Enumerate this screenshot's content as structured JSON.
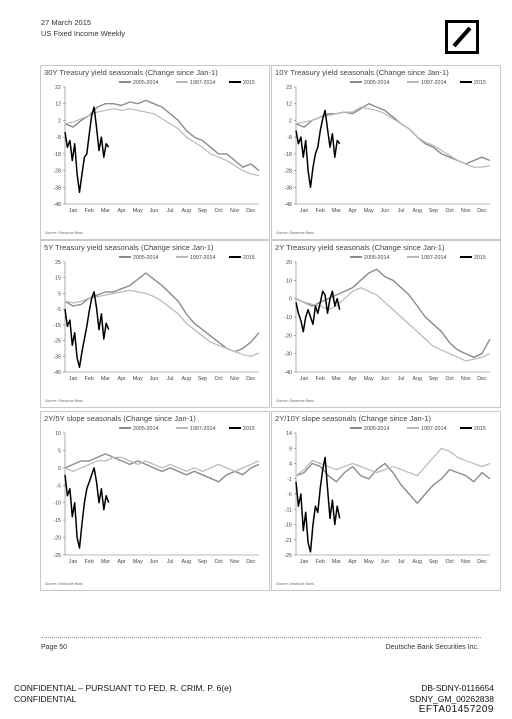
{
  "header": {
    "date": "27 March 2015",
    "title": "US Fixed Income Weekly"
  },
  "brand": {
    "logo": "deutsche-bank-slash-logo",
    "logo_color": "#000000"
  },
  "colors": {
    "s2005": "#8c8c8c",
    "s1997": "#b8b8b8",
    "s2015": "#000000"
  },
  "months": [
    "Jan",
    "Feb",
    "Mar",
    "Apr",
    "May",
    "Jun",
    "Jul",
    "Aug",
    "Sep",
    "Oct",
    "Nov",
    "Dec"
  ],
  "source_label": "Source: Deutsche Bank",
  "chart_data": [
    {
      "type": "line",
      "title": "30Y Treasury yield seasonals (Change since Jan-1)",
      "yticks": [
        22,
        12,
        2,
        -8,
        -18,
        -28,
        -38,
        -48
      ],
      "ylim": [
        -48,
        22
      ],
      "series": [
        {
          "name": "2005-2014",
          "x": [
            0,
            0.5,
            1,
            1.5,
            2,
            2.5,
            3,
            3.5,
            4,
            4.5,
            5,
            5.5,
            6,
            6.5,
            7,
            7.5,
            8,
            8.5,
            9,
            9.5,
            10,
            10.5,
            11,
            11.5,
            12
          ],
          "values": [
            0,
            -2,
            2,
            5,
            10,
            12,
            12,
            11,
            13,
            12,
            14,
            12,
            10,
            6,
            2,
            -4,
            -8,
            -10,
            -14,
            -18,
            -18,
            -22,
            -26,
            -24,
            -28
          ]
        },
        {
          "name": "1997-2014",
          "x": [
            0,
            0.5,
            1,
            1.5,
            2,
            2.5,
            3,
            3.5,
            4,
            4.5,
            5,
            5.5,
            6,
            6.5,
            7,
            7.5,
            8,
            8.5,
            9,
            9.5,
            10,
            10.5,
            11,
            11.5,
            12
          ],
          "values": [
            0,
            1,
            3,
            5,
            7,
            8,
            9,
            8,
            9,
            8,
            7,
            6,
            3,
            0,
            -3,
            -8,
            -11,
            -14,
            -18,
            -20,
            -22,
            -25,
            -28,
            -30,
            -31
          ]
        },
        {
          "name": "2015",
          "x": [
            0,
            0.15,
            0.3,
            0.45,
            0.6,
            0.75,
            0.9,
            1.05,
            1.2,
            1.35,
            1.5,
            1.65,
            1.8,
            1.95,
            2.1,
            2.25,
            2.4,
            2.55,
            2.7
          ],
          "values": [
            -5,
            -14,
            -10,
            -22,
            -12,
            -30,
            -41,
            -30,
            -20,
            -18,
            -6,
            5,
            10,
            -2,
            -16,
            -8,
            -20,
            -12,
            -14
          ]
        }
      ]
    },
    {
      "type": "line",
      "title": "10Y Treasury yield seasonals (Change since Jan-1)",
      "yticks": [
        22,
        12,
        2,
        -8,
        -18,
        -28,
        -38,
        -48
      ],
      "ylim": [
        -48,
        22
      ],
      "series": [
        {
          "name": "2005-2014",
          "x": [
            0,
            0.5,
            1,
            1.5,
            2,
            2.5,
            3,
            3.5,
            4,
            4.5,
            5,
            5.5,
            6,
            6.5,
            7,
            7.5,
            8,
            8.5,
            9,
            9.5,
            10,
            10.5,
            11,
            11.5,
            12
          ],
          "values": [
            0,
            -2,
            2,
            4,
            6,
            6,
            7,
            6,
            9,
            12,
            10,
            8,
            4,
            0,
            -3,
            -8,
            -12,
            -14,
            -18,
            -20,
            -22,
            -24,
            -22,
            -20,
            -22
          ]
        },
        {
          "name": "1997-2014",
          "x": [
            0,
            0.5,
            1,
            1.5,
            2,
            2.5,
            3,
            3.5,
            4,
            4.5,
            5,
            5.5,
            6,
            6.5,
            7,
            7.5,
            8,
            8.5,
            9,
            9.5,
            10,
            10.5,
            11,
            11.5,
            12
          ],
          "values": [
            0,
            1,
            2,
            4,
            5,
            6,
            7,
            7,
            10,
            9,
            8,
            6,
            3,
            0,
            -3,
            -8,
            -11,
            -13,
            -16,
            -19,
            -22,
            -24,
            -26,
            -26,
            -25
          ]
        },
        {
          "name": "2015",
          "x": [
            0,
            0.15,
            0.3,
            0.45,
            0.6,
            0.75,
            0.9,
            1.05,
            1.2,
            1.35,
            1.5,
            1.65,
            1.8,
            1.95,
            2.1,
            2.25,
            2.4,
            2.55,
            2.7
          ],
          "values": [
            -4,
            -12,
            -8,
            -20,
            -10,
            -28,
            -38,
            -26,
            -18,
            -14,
            -4,
            3,
            8,
            -3,
            -14,
            -6,
            -20,
            -10,
            -12
          ]
        }
      ]
    },
    {
      "type": "line",
      "title": "5Y Treasury yield seasonals (Change since Jan-1)",
      "yticks": [
        25,
        15,
        5,
        -5,
        -15,
        -25,
        -35,
        -45
      ],
      "ylim": [
        -45,
        25
      ],
      "series": [
        {
          "name": "2005-2014",
          "x": [
            0,
            0.5,
            1,
            1.5,
            2,
            2.5,
            3,
            3.5,
            4,
            4.5,
            5,
            5.5,
            6,
            6.5,
            7,
            7.5,
            8,
            8.5,
            9,
            9.5,
            10,
            10.5,
            11,
            11.5,
            12
          ],
          "values": [
            0,
            -3,
            -2,
            2,
            4,
            6,
            6,
            8,
            10,
            14,
            18,
            14,
            10,
            5,
            0,
            -8,
            -14,
            -18,
            -22,
            -26,
            -30,
            -32,
            -30,
            -26,
            -20
          ]
        },
        {
          "name": "1997-2014",
          "x": [
            0,
            0.5,
            1,
            1.5,
            2,
            2.5,
            3,
            3.5,
            4,
            4.5,
            5,
            5.5,
            6,
            6.5,
            7,
            7.5,
            8,
            8.5,
            9,
            9.5,
            10,
            10.5,
            11,
            11.5,
            12
          ],
          "values": [
            0,
            -1,
            0,
            2,
            3,
            4,
            5,
            6,
            7,
            6,
            5,
            3,
            0,
            -4,
            -8,
            -14,
            -18,
            -22,
            -26,
            -28,
            -30,
            -32,
            -34,
            -35,
            -33
          ]
        },
        {
          "name": "2015",
          "x": [
            0,
            0.15,
            0.3,
            0.45,
            0.6,
            0.75,
            0.9,
            1.05,
            1.2,
            1.35,
            1.5,
            1.65,
            1.8,
            1.95,
            2.1,
            2.25,
            2.4,
            2.55,
            2.7
          ],
          "values": [
            -5,
            -16,
            -12,
            -28,
            -20,
            -36,
            -42,
            -32,
            -24,
            -16,
            -6,
            2,
            6,
            -4,
            -18,
            -8,
            -24,
            -14,
            -18
          ]
        }
      ]
    },
    {
      "type": "line",
      "title": "2Y Treasury yield seasonals (Change since Jan-1)",
      "yticks": [
        20,
        10,
        0,
        -10,
        -20,
        -30,
        -40
      ],
      "ylim": [
        -40,
        20
      ],
      "series": [
        {
          "name": "2005-2014",
          "x": [
            0,
            0.5,
            1,
            1.5,
            2,
            2.5,
            3,
            3.5,
            4,
            4.5,
            5,
            5.5,
            6,
            6.5,
            7,
            7.5,
            8,
            8.5,
            9,
            9.5,
            10,
            10.5,
            11,
            11.5,
            12
          ],
          "values": [
            0,
            -2,
            -4,
            -2,
            0,
            2,
            4,
            6,
            10,
            14,
            16,
            12,
            10,
            6,
            2,
            -4,
            -10,
            -14,
            -18,
            -24,
            -28,
            -30,
            -32,
            -30,
            -22
          ]
        },
        {
          "name": "1997-2014",
          "x": [
            0,
            0.5,
            1,
            1.5,
            2,
            2.5,
            3,
            3.5,
            4,
            4.5,
            5,
            5.5,
            6,
            6.5,
            7,
            7.5,
            8,
            8.5,
            9,
            9.5,
            10,
            10.5,
            11,
            11.5,
            12
          ],
          "values": [
            0,
            -2,
            -3,
            -4,
            -6,
            -4,
            0,
            4,
            6,
            4,
            2,
            -2,
            -6,
            -10,
            -14,
            -18,
            -22,
            -26,
            -28,
            -30,
            -32,
            -34,
            -33,
            -32,
            -30
          ]
        },
        {
          "name": "2015",
          "x": [
            0,
            0.15,
            0.3,
            0.45,
            0.6,
            0.75,
            0.9,
            1.05,
            1.2,
            1.35,
            1.5,
            1.65,
            1.8,
            1.95,
            2.1,
            2.25,
            2.4,
            2.55,
            2.7
          ],
          "values": [
            -2,
            -8,
            -12,
            -18,
            -10,
            -6,
            -10,
            -14,
            -4,
            -8,
            -2,
            4,
            2,
            -8,
            0,
            4,
            -4,
            0,
            -6
          ]
        }
      ]
    },
    {
      "type": "line",
      "title": "2Y/5Y slope seasonals (Change since Jan-1)",
      "yticks": [
        10,
        5,
        0,
        -5,
        -10,
        -15,
        -20,
        -25
      ],
      "ylim": [
        -25,
        10
      ],
      "series": [
        {
          "name": "2005-2014",
          "x": [
            0,
            0.5,
            1,
            1.5,
            2,
            2.5,
            3,
            3.5,
            4,
            4.5,
            5,
            5.5,
            6,
            6.5,
            7,
            7.5,
            8,
            8.5,
            9,
            9.5,
            10,
            10.5,
            11,
            11.5,
            12
          ],
          "values": [
            0,
            1,
            2,
            2,
            3,
            4,
            3,
            2,
            1,
            2,
            1,
            0,
            -1,
            0,
            -1,
            -2,
            -1,
            -2,
            -3,
            -4,
            -2,
            -1,
            -2,
            0,
            1
          ]
        },
        {
          "name": "1997-2014",
          "x": [
            0,
            0.5,
            1,
            1.5,
            2,
            2.5,
            3,
            3.5,
            4,
            4.5,
            5,
            5.5,
            6,
            6.5,
            7,
            7.5,
            8,
            8.5,
            9,
            9.5,
            10,
            10.5,
            11,
            11.5,
            12
          ],
          "values": [
            0,
            -1,
            0,
            1,
            2,
            2,
            3,
            3,
            2,
            1,
            2,
            1,
            0,
            1,
            0,
            -1,
            0,
            -1,
            0,
            1,
            0,
            -1,
            0,
            1,
            2
          ]
        },
        {
          "name": "2015",
          "x": [
            0,
            0.15,
            0.3,
            0.45,
            0.6,
            0.75,
            0.9,
            1.05,
            1.2,
            1.35,
            1.5,
            1.65,
            1.8,
            1.95,
            2.1,
            2.25,
            2.4,
            2.55,
            2.7
          ],
          "values": [
            -2,
            -8,
            -6,
            -14,
            -10,
            -20,
            -23,
            -16,
            -10,
            -6,
            -4,
            -2,
            0,
            -4,
            -10,
            -6,
            -12,
            -8,
            -10
          ]
        }
      ]
    },
    {
      "type": "line",
      "title": "2Y/10Y slope seasonals (Change since Jan-1)",
      "yticks": [
        14,
        9,
        4,
        -1,
        -6,
        -11,
        -16,
        -21,
        -26
      ],
      "ylim": [
        -26,
        14
      ],
      "series": [
        {
          "name": "2005-2014",
          "x": [
            0,
            0.5,
            1,
            1.5,
            2,
            2.5,
            3,
            3.5,
            4,
            4.5,
            5,
            5.5,
            6,
            6.5,
            7,
            7.5,
            8,
            8.5,
            9,
            9.5,
            10,
            10.5,
            11,
            11.5,
            12
          ],
          "values": [
            0,
            1,
            4,
            3,
            0,
            -2,
            1,
            3,
            0,
            -1,
            2,
            4,
            1,
            -3,
            -6,
            -9,
            -6,
            -3,
            -1,
            2,
            1,
            0,
            -2,
            1,
            -1
          ]
        },
        {
          "name": "1997-2014",
          "x": [
            0,
            0.5,
            1,
            1.5,
            2,
            2.5,
            3,
            3.5,
            4,
            4.5,
            5,
            5.5,
            6,
            6.5,
            7,
            7.5,
            8,
            8.5,
            9,
            9.5,
            10,
            10.5,
            11,
            11.5,
            12
          ],
          "values": [
            0,
            2,
            5,
            4,
            3,
            2,
            3,
            4,
            3,
            2,
            1,
            2,
            3,
            2,
            1,
            0,
            3,
            6,
            9,
            8,
            6,
            5,
            4,
            3,
            4
          ]
        },
        {
          "name": "2015",
          "x": [
            0,
            0.15,
            0.3,
            0.45,
            0.6,
            0.75,
            0.9,
            1.05,
            1.2,
            1.35,
            1.5,
            1.65,
            1.8,
            1.95,
            2.1,
            2.25,
            2.4,
            2.55,
            2.7
          ],
          "values": [
            -2,
            -10,
            -6,
            -18,
            -12,
            -22,
            -25,
            -16,
            -10,
            -12,
            -4,
            2,
            6,
            -4,
            -14,
            -8,
            -16,
            -10,
            -14
          ]
        }
      ]
    }
  ],
  "footer": {
    "page": "Page 50",
    "firm": "Deutsche Bank Securities Inc.",
    "confidential_line1": "CONFIDENTIAL – PURSUANT TO FED. R. CRIM. P. 6(e)",
    "confidential_line2": "CONFIDENTIAL",
    "id1": "DB-SDNY-0116654",
    "id2": "SDNY_GM_00262838",
    "id3": "EFTA01457209"
  }
}
